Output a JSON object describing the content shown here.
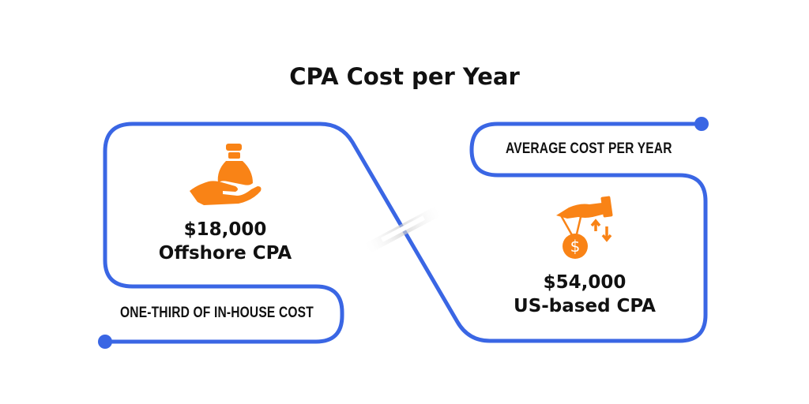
{
  "title": "CPA Cost per Year",
  "colors": {
    "line": "#3A66E4",
    "icon": "#F98316",
    "text": "#111111"
  },
  "left": {
    "icon": "money-bag-hand-icon",
    "amount": "$18,000",
    "label": "Offshore CPA",
    "tag": "ONE-THIRD OF IN-HOUSE COST"
  },
  "right": {
    "icon": "hand-dollar-coin-icon",
    "amount": "$54,000",
    "label": "US-based CPA",
    "tag": "AVERAGE COST PER YEAR"
  }
}
